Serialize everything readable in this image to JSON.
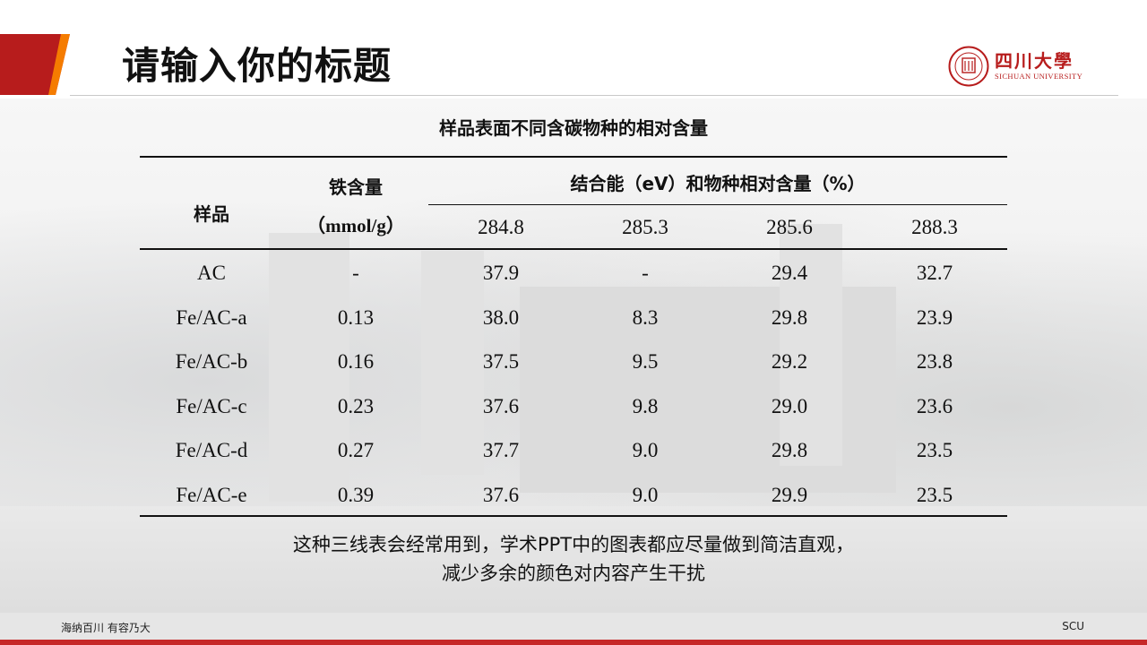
{
  "slide": {
    "title": "请输入你的标题",
    "logo": {
      "cn": "四川大學",
      "en": "SICHUAN UNIVERSITY"
    },
    "accent_color": "#c62828"
  },
  "table": {
    "caption": "样品表面不同含碳物种的相对含量",
    "headers": {
      "sample": "样品",
      "iron_content": "铁含量",
      "iron_unit": "（mmol/g）",
      "binding_group": "结合能（eV）和物种相对含量（%）",
      "binding_energies": [
        "284.8",
        "285.3",
        "285.6",
        "288.3"
      ]
    },
    "rows": [
      {
        "sample": "AC",
        "fe": "-",
        "v": [
          "37.9",
          "-",
          "29.4",
          "32.7"
        ]
      },
      {
        "sample": "Fe/AC-a",
        "fe": "0.13",
        "v": [
          "38.0",
          "8.3",
          "29.8",
          "23.9"
        ]
      },
      {
        "sample": "Fe/AC-b",
        "fe": "0.16",
        "v": [
          "37.5",
          "9.5",
          "29.2",
          "23.8"
        ]
      },
      {
        "sample": "Fe/AC-c",
        "fe": "0.23",
        "v": [
          "37.6",
          "9.8",
          "29.0",
          "23.6"
        ]
      },
      {
        "sample": "Fe/AC-d",
        "fe": "0.27",
        "v": [
          "37.7",
          "9.0",
          "29.8",
          "23.5"
        ]
      },
      {
        "sample": "Fe/AC-e",
        "fe": "0.39",
        "v": [
          "37.6",
          "9.0",
          "29.9",
          "23.5"
        ]
      }
    ]
  },
  "note": {
    "line1": "这种三线表会经常用到，学术PPT中的图表都应尽量做到简洁直观，",
    "line2": "减少多余的颜色对内容产生干扰"
  },
  "footer": {
    "left": "海纳百川  有容乃大",
    "right": "SCU"
  }
}
